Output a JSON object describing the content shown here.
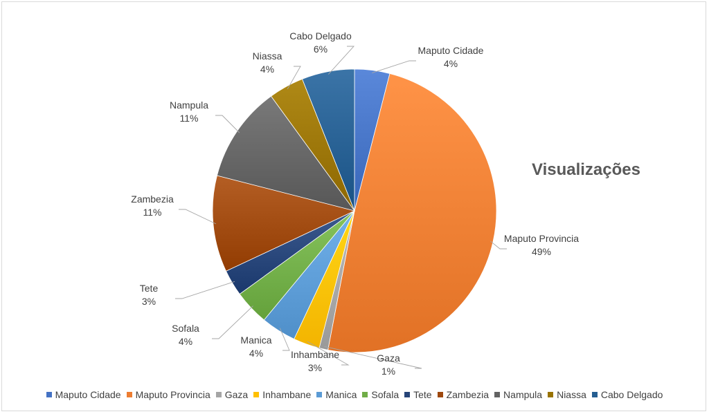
{
  "chart_data": {
    "type": "pie",
    "title": "Visualizações",
    "legend_position": "bottom",
    "slices": [
      {
        "label": "Maputo Cidade",
        "value": 4,
        "value_label": "4%",
        "color": "#4472C4"
      },
      {
        "label": "Maputo Provincia",
        "value": 49,
        "value_label": "49%",
        "color": "#ED7D31"
      },
      {
        "label": "Gaza",
        "value": 1,
        "value_label": "1%",
        "color": "#A5A5A5"
      },
      {
        "label": "Inhambane",
        "value": 3,
        "value_label": "3%",
        "color": "#FFC000"
      },
      {
        "label": "Manica",
        "value": 4,
        "value_label": "4%",
        "color": "#5B9BD5"
      },
      {
        "label": "Sofala",
        "value": 4,
        "value_label": "4%",
        "color": "#70AD47"
      },
      {
        "label": "Tete",
        "value": 3,
        "value_label": "3%",
        "color": "#264478"
      },
      {
        "label": "Zambezia",
        "value": 11,
        "value_label": "11%",
        "color": "#9E480E"
      },
      {
        "label": "Nampula",
        "value": 11,
        "value_label": "11%",
        "color": "#636363"
      },
      {
        "label": "Niassa",
        "value": 4,
        "value_label": "4%",
        "color": "#997300"
      },
      {
        "label": "Cabo Delgado",
        "value": 6,
        "value_label": "6%",
        "color": "#255E91"
      }
    ]
  }
}
